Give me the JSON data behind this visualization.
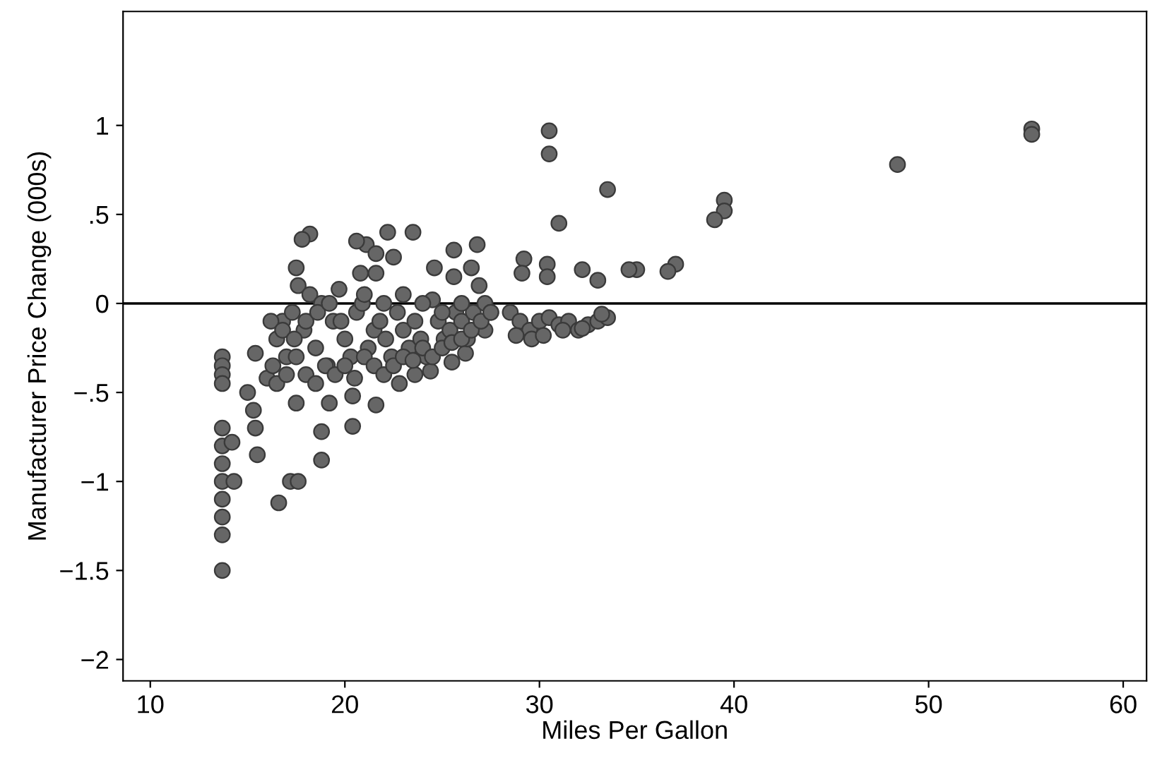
{
  "chart_data": {
    "type": "scatter",
    "xlabel": "Miles Per Gallon",
    "ylabel": "Manufacturer Price Change (000s)",
    "xlim": [
      8.6,
      61.2
    ],
    "ylim": [
      -2.12,
      1.64
    ],
    "xticks": [
      10,
      20,
      30,
      40,
      50,
      60
    ],
    "yticks": [
      {
        "value": -2,
        "label": "−2"
      },
      {
        "value": -1.5,
        "label": "−1.5"
      },
      {
        "value": -1,
        "label": "−1"
      },
      {
        "value": -0.5,
        "label": "−.5"
      },
      {
        "value": 0,
        "label": "0"
      },
      {
        "value": 0.5,
        "label": ".5"
      },
      {
        "value": 1,
        "label": "1"
      }
    ],
    "grid": false,
    "marker": "circle",
    "ref_lines": [
      {
        "axis": "y",
        "value": 0,
        "color": "#000000"
      }
    ],
    "series": [
      {
        "color": "#666666",
        "x": [
          13.7,
          13.7,
          13.7,
          13.7,
          13.7,
          13.7,
          13.7,
          13.7,
          13.7,
          13.7,
          13.7,
          13.7,
          14.2,
          14.3,
          15.4,
          15.0,
          15.3,
          15.4,
          15.5,
          16.6,
          17.2,
          17.6,
          18.8,
          18.8,
          19.2,
          20.4,
          20.4,
          21.6,
          17.5,
          22.8,
          23.6,
          24.4,
          25.5,
          26.2,
          27.2,
          30.5,
          30.5,
          33.5,
          31.0,
          48.4,
          55.3,
          55.3,
          39.5,
          39.5,
          39.0,
          37.0,
          36.6,
          35.0,
          34.6,
          33.0,
          32.2,
          30.4,
          30.4,
          29.2,
          29.1,
          26.8,
          25.6,
          25.6,
          23.5,
          22.2,
          21.1,
          20.6,
          18.2,
          17.8,
          21.6,
          21.6,
          20.8,
          22.5,
          24.6,
          26.5,
          17.5,
          16.0,
          16.3,
          16.5,
          16.8,
          17.0,
          17.3,
          17.6,
          17.9,
          18.2,
          18.5,
          18.8,
          19.1,
          19.4,
          19.7,
          20.0,
          20.3,
          20.6,
          20.9,
          21.2,
          21.5,
          21.8,
          22.1,
          22.4,
          22.7,
          23.0,
          23.3,
          23.6,
          23.9,
          24.2,
          24.5,
          24.8,
          25.1,
          25.4,
          25.7,
          26.0,
          26.3,
          26.6,
          26.9,
          27.2,
          27.5,
          16.5,
          17.0,
          17.5,
          18.0,
          18.5,
          19.0,
          19.5,
          20.0,
          20.5,
          21.0,
          21.5,
          22.0,
          22.5,
          23.0,
          23.5,
          24.0,
          24.5,
          25.0,
          25.5,
          26.0,
          26.5,
          27.0,
          27.5,
          28.5,
          29.0,
          29.5,
          30.0,
          30.5,
          31.0,
          31.5,
          32.0,
          32.5,
          33.0,
          33.5,
          28.8,
          29.6,
          30.2,
          31.2,
          32.2,
          33.2,
          16.2,
          16.8,
          17.4,
          18.0,
          18.6,
          19.2,
          19.8,
          21.0,
          22.0,
          23.0,
          24.0,
          25.0,
          26.0
        ],
        "values": [
          -0.3,
          -0.35,
          -0.4,
          -0.45,
          -0.7,
          -0.8,
          -0.9,
          -1.0,
          -1.1,
          -1.2,
          -1.3,
          -1.5,
          -0.78,
          -1.0,
          -0.28,
          -0.5,
          -0.6,
          -0.7,
          -0.85,
          -1.12,
          -1.0,
          -1.0,
          -0.88,
          -0.72,
          -0.56,
          -0.69,
          -0.52,
          -0.57,
          -0.56,
          -0.45,
          -0.4,
          -0.38,
          -0.33,
          -0.28,
          -0.15,
          0.97,
          0.84,
          0.64,
          0.45,
          0.78,
          0.98,
          0.95,
          0.58,
          0.52,
          0.47,
          0.22,
          0.18,
          0.19,
          0.19,
          0.13,
          0.19,
          0.22,
          0.15,
          0.25,
          0.17,
          0.33,
          0.3,
          0.15,
          0.4,
          0.4,
          0.33,
          0.35,
          0.39,
          0.36,
          0.28,
          0.17,
          0.17,
          0.26,
          0.2,
          0.2,
          0.2,
          -0.42,
          -0.35,
          -0.2,
          -0.1,
          -0.3,
          -0.05,
          0.1,
          -0.15,
          0.05,
          -0.25,
          0.0,
          -0.35,
          -0.1,
          0.08,
          -0.2,
          -0.3,
          -0.05,
          0.0,
          -0.25,
          -0.15,
          -0.1,
          -0.2,
          -0.3,
          -0.05,
          -0.15,
          -0.25,
          -0.1,
          -0.2,
          -0.3,
          0.02,
          -0.1,
          -0.2,
          -0.15,
          -0.05,
          -0.1,
          -0.2,
          -0.05,
          0.1,
          0.0,
          -0.05,
          -0.45,
          -0.4,
          -0.3,
          -0.4,
          -0.45,
          -0.35,
          -0.4,
          -0.35,
          -0.42,
          -0.3,
          -0.35,
          -0.4,
          -0.35,
          -0.3,
          -0.32,
          -0.25,
          -0.3,
          -0.25,
          -0.22,
          -0.2,
          -0.15,
          -0.1,
          -0.05,
          -0.05,
          -0.1,
          -0.15,
          -0.1,
          -0.08,
          -0.12,
          -0.1,
          -0.15,
          -0.12,
          -0.1,
          -0.08,
          -0.18,
          -0.2,
          -0.18,
          -0.15,
          -0.14,
          -0.06,
          -0.1,
          -0.15,
          -0.2,
          -0.1,
          -0.05,
          0.0,
          -0.1,
          0.05,
          0.0,
          0.05,
          0.0,
          -0.05,
          0.0
        ]
      }
    ]
  }
}
